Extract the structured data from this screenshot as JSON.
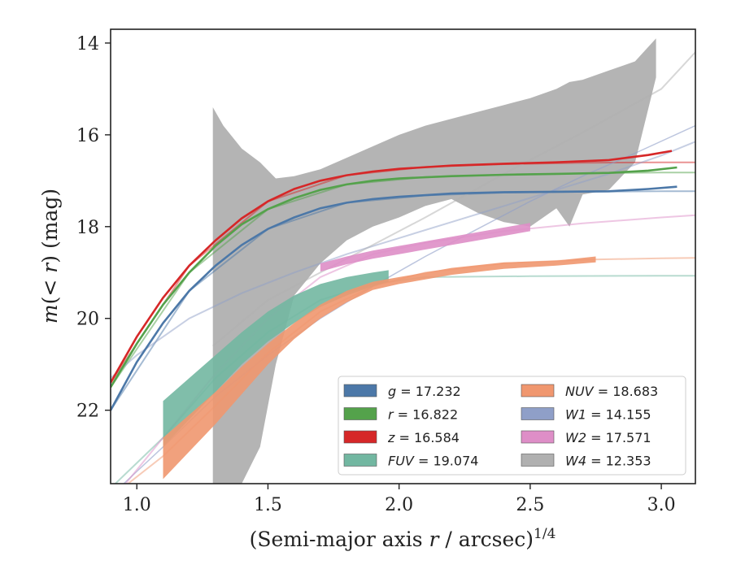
{
  "chart_data": {
    "type": "line",
    "xlabel": "(Semi-major axis r / arcsec)^1/4",
    "ylabel": "m(< r) (mag)",
    "xlim": [
      0.9,
      3.13
    ],
    "ylim": [
      23.6,
      13.7
    ],
    "y_inverted": true,
    "x_ticks": [
      1.0,
      1.5,
      2.0,
      2.5,
      3.0
    ],
    "x_tick_labels": [
      "1.0",
      "1.5",
      "2.0",
      "2.5",
      "3.0"
    ],
    "y_ticks": [
      14,
      16,
      18,
      20,
      22
    ],
    "y_tick_labels": [
      "14",
      "16",
      "18",
      "20",
      "22"
    ],
    "legend_position": "lower-right",
    "legend": [
      {
        "label": "g = 17.232",
        "color": "#4c78a8"
      },
      {
        "label": "r = 16.822",
        "color": "#54a24b"
      },
      {
        "label": "z = 16.584",
        "color": "#d62728"
      },
      {
        "label": "FUV = 19.074",
        "color": "#72b7a1"
      },
      {
        "label": "NUV = 18.683",
        "color": "#f0976f"
      },
      {
        "label": "W1 = 14.155",
        "color": "#8f9fc8"
      },
      {
        "label": "W2 = 17.571",
        "color": "#de8ec7"
      },
      {
        "label": "W4 = 12.353",
        "color": "#b0b0b0"
      }
    ],
    "series": [
      {
        "name": "g = 17.232",
        "color": "#4c78a8",
        "data_x": [
          0.9,
          1.0,
          1.1,
          1.2,
          1.3,
          1.4,
          1.5,
          1.6,
          1.7,
          1.8,
          1.9,
          2.0,
          2.2,
          2.4,
          2.6,
          2.8,
          2.95,
          3.06
        ],
        "data_y": [
          22.0,
          20.95,
          20.1,
          19.4,
          18.85,
          18.4,
          18.05,
          17.8,
          17.6,
          17.48,
          17.4,
          17.35,
          17.28,
          17.25,
          17.24,
          17.23,
          17.18,
          17.13
        ],
        "model_x": [
          0.9,
          1.2,
          1.5,
          1.8,
          2.1,
          2.4,
          2.7,
          3.0,
          3.13
        ],
        "model_y": [
          22.0,
          19.4,
          18.05,
          17.48,
          17.32,
          17.26,
          17.24,
          17.23,
          17.23
        ]
      },
      {
        "name": "r = 16.822",
        "color": "#54a24b",
        "data_x": [
          0.9,
          1.0,
          1.1,
          1.2,
          1.3,
          1.4,
          1.5,
          1.6,
          1.7,
          1.8,
          1.9,
          2.0,
          2.2,
          2.4,
          2.6,
          2.8,
          2.95,
          3.06
        ],
        "data_y": [
          21.5,
          20.55,
          19.7,
          19.0,
          18.42,
          17.95,
          17.62,
          17.38,
          17.2,
          17.08,
          17.0,
          16.95,
          16.9,
          16.87,
          16.85,
          16.83,
          16.78,
          16.71
        ],
        "model_x": [
          0.9,
          1.2,
          1.5,
          1.8,
          2.1,
          2.4,
          2.7,
          3.0,
          3.13
        ],
        "model_y": [
          21.5,
          19.0,
          17.62,
          17.08,
          16.92,
          16.87,
          16.84,
          16.82,
          16.82
        ]
      },
      {
        "name": "z = 16.584",
        "color": "#d62728",
        "data_x": [
          0.9,
          1.0,
          1.1,
          1.2,
          1.3,
          1.4,
          1.5,
          1.6,
          1.7,
          1.8,
          1.9,
          2.0,
          2.2,
          2.4,
          2.6,
          2.8,
          2.95,
          3.04
        ],
        "data_y": [
          21.4,
          20.4,
          19.55,
          18.85,
          18.3,
          17.82,
          17.45,
          17.18,
          17.0,
          16.88,
          16.8,
          16.74,
          16.67,
          16.63,
          16.6,
          16.55,
          16.44,
          16.35
        ],
        "model_x": [
          0.9,
          1.2,
          1.5,
          1.8,
          2.1,
          2.4,
          2.7,
          3.0,
          3.13
        ],
        "model_y": [
          21.4,
          18.85,
          17.45,
          16.88,
          16.7,
          16.64,
          16.61,
          16.6,
          16.6
        ]
      },
      {
        "name": "FUV = 19.074",
        "color": "#72b7a1",
        "data_x": [
          1.1,
          1.2,
          1.3,
          1.4,
          1.5,
          1.6,
          1.7,
          1.8,
          1.9,
          1.96
        ],
        "data_y_upper": [
          21.8,
          21.3,
          20.8,
          20.3,
          19.85,
          19.5,
          19.25,
          19.1,
          19.0,
          18.95
        ],
        "data_y_lower": [
          22.8,
          22.2,
          21.6,
          21.0,
          20.5,
          20.1,
          19.75,
          19.5,
          19.3,
          19.2
        ],
        "model_x": [
          0.9,
          1.1,
          1.3,
          1.5,
          1.7,
          1.9,
          2.1,
          2.5,
          3.0,
          3.13
        ],
        "model_y": [
          23.7,
          22.6,
          21.3,
          20.3,
          19.6,
          19.25,
          19.1,
          19.08,
          19.07,
          19.07
        ]
      },
      {
        "name": "NUV = 18.683",
        "color": "#f0976f",
        "data_x": [
          1.1,
          1.2,
          1.3,
          1.4,
          1.5,
          1.6,
          1.7,
          1.8,
          1.9,
          2.0,
          2.2,
          2.4,
          2.6,
          2.75
        ],
        "data_y_upper": [
          22.6,
          22.1,
          21.6,
          21.05,
          20.55,
          20.1,
          19.7,
          19.4,
          19.2,
          19.1,
          18.9,
          18.78,
          18.74,
          18.65
        ],
        "data_y_lower": [
          23.5,
          22.9,
          22.3,
          21.65,
          21.0,
          20.45,
          20.0,
          19.65,
          19.38,
          19.25,
          19.05,
          18.92,
          18.85,
          18.78
        ],
        "model_x": [
          0.9,
          1.1,
          1.3,
          1.5,
          1.7,
          1.9,
          2.1,
          2.4,
          2.7,
          3.0,
          3.13
        ],
        "model_y": [
          23.9,
          23.0,
          21.9,
          20.75,
          19.85,
          19.3,
          19.0,
          18.8,
          18.72,
          18.69,
          18.68
        ]
      },
      {
        "name": "W1 = 14.155",
        "color": "#8f9fc8",
        "model_x": [
          0.9,
          1.0,
          1.2,
          1.4,
          1.6,
          1.8,
          2.0,
          2.2,
          2.4,
          2.6,
          2.8,
          3.0,
          3.13
        ],
        "model_y": [
          21.3,
          20.8,
          20.0,
          19.45,
          19.0,
          18.6,
          18.25,
          17.9,
          17.55,
          17.2,
          16.85,
          16.45,
          16.15
        ],
        "thin_x": [
          0.95,
          1.1,
          1.3,
          1.5,
          1.7,
          1.9,
          2.1,
          2.3,
          2.5,
          2.7,
          2.9,
          3.13
        ],
        "thin_y": [
          23.6,
          22.8,
          21.7,
          20.8,
          20.0,
          19.3,
          18.65,
          18.05,
          17.45,
          16.9,
          16.4,
          15.8
        ]
      },
      {
        "name": "W2 = 17.571",
        "color": "#de8ec7",
        "data_x": [
          1.7,
          1.8,
          1.9,
          2.0,
          2.1,
          2.2,
          2.3,
          2.4,
          2.5
        ],
        "data_y_upper": [
          18.8,
          18.65,
          18.52,
          18.42,
          18.32,
          18.22,
          18.12,
          18.02,
          17.92
        ],
        "data_y_lower": [
          18.98,
          18.82,
          18.7,
          18.6,
          18.5,
          18.4,
          18.3,
          18.2,
          18.1
        ],
        "model_x": [
          0.9,
          1.1,
          1.3,
          1.5,
          1.7,
          1.9,
          2.1,
          2.4,
          2.7,
          3.0,
          3.13
        ],
        "model_y": [
          24.0,
          22.6,
          21.2,
          20.0,
          19.1,
          18.6,
          18.35,
          18.1,
          17.93,
          17.8,
          17.75
        ]
      },
      {
        "name": "W4 = 12.353",
        "color": "#b0b0b0",
        "band_x": [
          1.29,
          1.33,
          1.4,
          1.47,
          1.53,
          1.6,
          1.7,
          1.8,
          1.9,
          2.0,
          2.1,
          2.2,
          2.3,
          2.4,
          2.5,
          2.6,
          2.65,
          2.7,
          2.8,
          2.9,
          2.98
        ],
        "band_upper": [
          15.4,
          15.8,
          16.3,
          16.6,
          16.95,
          16.9,
          16.75,
          16.5,
          16.25,
          16.0,
          15.8,
          15.65,
          15.5,
          15.35,
          15.2,
          15.0,
          14.85,
          14.8,
          14.6,
          14.4,
          13.9
        ],
        "band_lower": [
          23.6,
          23.6,
          23.6,
          22.8,
          21.0,
          19.5,
          18.8,
          18.3,
          18.0,
          17.8,
          17.55,
          17.4,
          17.7,
          17.9,
          18.0,
          17.6,
          18.0,
          17.3,
          17.2,
          16.6,
          14.75
        ],
        "model_x": [
          1.29,
          1.5,
          1.8,
          2.1,
          2.4,
          2.7,
          3.0,
          3.13
        ],
        "model_y": [
          20.6,
          19.6,
          18.7,
          17.8,
          16.85,
          15.95,
          15.0,
          14.2
        ]
      }
    ]
  }
}
